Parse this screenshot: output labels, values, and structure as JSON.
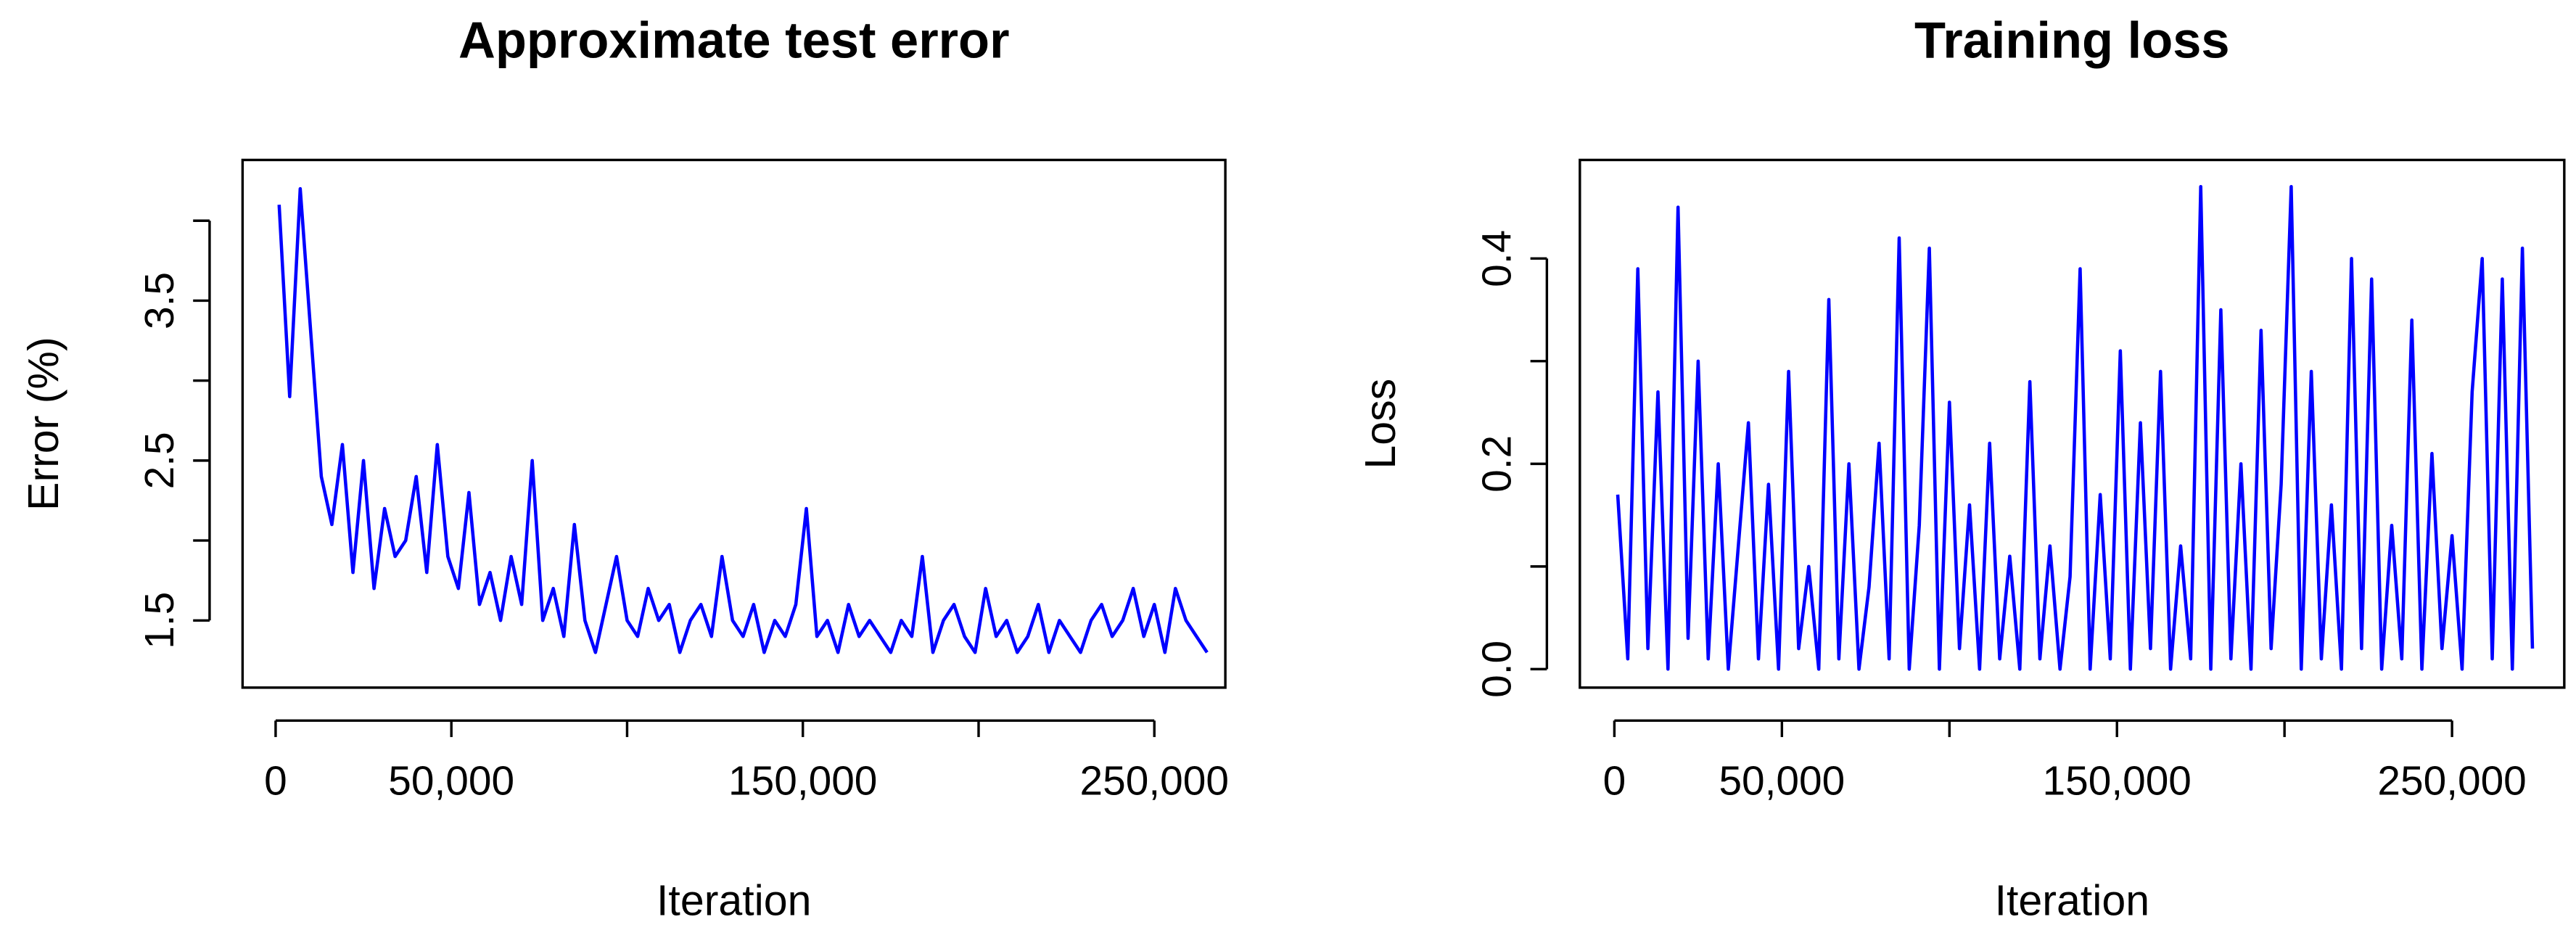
{
  "chart_data": [
    {
      "type": "line",
      "title": "Approximate test error",
      "xlabel": "Iteration",
      "ylabel": "Error (%)",
      "color": "#0000ff",
      "xlim": [
        -9400,
        270200
      ],
      "ylim": [
        1.08,
        4.38
      ],
      "xticks": [
        0,
        {
          "value": 50000,
          "label": "50,000"
        },
        {
          "value": 100000,
          "label": null
        },
        {
          "value": 150000,
          "label": "150,000"
        },
        {
          "value": 200000,
          "label": null
        },
        {
          "value": 250000,
          "label": "250,000"
        }
      ],
      "yticks": [
        1.5,
        {
          "value": 2.0,
          "label": null
        },
        2.5,
        {
          "value": 3.0,
          "label": null
        },
        3.5,
        {
          "value": 4.0,
          "label": null
        }
      ],
      "x": [
        1000,
        4000,
        7000,
        10000,
        13000,
        16000,
        19000,
        22000,
        25000,
        28000,
        31000,
        34000,
        37000,
        40000,
        43000,
        46000,
        49000,
        52000,
        55000,
        58000,
        61000,
        64000,
        67000,
        70000,
        73000,
        76000,
        79000,
        82000,
        85000,
        88000,
        91000,
        94000,
        97000,
        100000,
        103000,
        106000,
        109000,
        112000,
        115000,
        118000,
        121000,
        124000,
        127000,
        130000,
        133000,
        136000,
        139000,
        142000,
        145000,
        148000,
        151000,
        154000,
        157000,
        160000,
        163000,
        166000,
        169000,
        172000,
        175000,
        178000,
        181000,
        184000,
        187000,
        190000,
        193000,
        196000,
        199000,
        202000,
        205000,
        208000,
        211000,
        214000,
        217000,
        220000,
        223000,
        226000,
        229000,
        232000,
        235000,
        238000,
        241000,
        244000,
        247000,
        250000,
        253000,
        256000,
        259000,
        262000,
        265000
      ],
      "values": [
        4.1,
        2.9,
        4.2,
        3.3,
        2.4,
        2.1,
        2.6,
        1.8,
        2.5,
        1.7,
        2.2,
        1.9,
        2.0,
        2.4,
        1.8,
        2.6,
        1.9,
        1.7,
        2.3,
        1.6,
        1.8,
        1.5,
        1.9,
        1.6,
        2.5,
        1.5,
        1.7,
        1.4,
        2.1,
        1.5,
        1.3,
        1.6,
        1.9,
        1.5,
        1.4,
        1.7,
        1.5,
        1.6,
        1.3,
        1.5,
        1.6,
        1.4,
        1.9,
        1.5,
        1.4,
        1.6,
        1.3,
        1.5,
        1.4,
        1.6,
        2.2,
        1.4,
        1.5,
        1.3,
        1.6,
        1.4,
        1.5,
        1.4,
        1.3,
        1.5,
        1.4,
        1.9,
        1.3,
        1.5,
        1.6,
        1.4,
        1.3,
        1.7,
        1.4,
        1.5,
        1.3,
        1.4,
        1.6,
        1.3,
        1.5,
        1.4,
        1.3,
        1.5,
        1.6,
        1.4,
        1.5,
        1.7,
        1.4,
        1.6,
        1.3,
        1.7,
        1.5,
        1.4,
        1.3
      ]
    },
    {
      "type": "line",
      "title": "Training loss",
      "xlabel": "Iteration",
      "ylabel": "Loss",
      "color": "#0000ff",
      "xlim": [
        -10300,
        283500
      ],
      "ylim": [
        -0.018,
        0.496
      ],
      "xticks": [
        0,
        {
          "value": 50000,
          "label": "50,000"
        },
        {
          "value": 100000,
          "label": null
        },
        {
          "value": 150000,
          "label": "150,000"
        },
        {
          "value": 200000,
          "label": null
        },
        {
          "value": 250000,
          "label": "250,000"
        }
      ],
      "yticks": [
        {
          "value": 0,
          "label": "0.0"
        },
        {
          "value": 0.1,
          "label": null
        },
        0.2,
        {
          "value": 0.3,
          "label": null
        },
        0.4
      ],
      "x": [
        1000,
        4000,
        7000,
        10000,
        13000,
        16000,
        19000,
        22000,
        25000,
        28000,
        31000,
        34000,
        37000,
        40000,
        43000,
        46000,
        49000,
        52000,
        55000,
        58000,
        61000,
        64000,
        67000,
        70000,
        73000,
        76000,
        79000,
        82000,
        85000,
        88000,
        91000,
        94000,
        97000,
        100000,
        103000,
        106000,
        109000,
        112000,
        115000,
        118000,
        121000,
        124000,
        127000,
        130000,
        133000,
        136000,
        139000,
        142000,
        145000,
        148000,
        151000,
        154000,
        157000,
        160000,
        163000,
        166000,
        169000,
        172000,
        175000,
        178000,
        181000,
        184000,
        187000,
        190000,
        193000,
        196000,
        199000,
        202000,
        205000,
        208000,
        211000,
        214000,
        217000,
        220000,
        223000,
        226000,
        229000,
        232000,
        235000,
        238000,
        241000,
        244000,
        247000,
        250000,
        253000,
        256000,
        259000,
        262000,
        265000,
        268000,
        271000,
        274000
      ],
      "values": [
        0.17,
        0.01,
        0.39,
        0.02,
        0.27,
        0.0,
        0.45,
        0.03,
        0.3,
        0.01,
        0.2,
        0.0,
        0.12,
        0.24,
        0.01,
        0.18,
        0.0,
        0.29,
        0.02,
        0.1,
        0.0,
        0.36,
        0.01,
        0.2,
        0.0,
        0.08,
        0.22,
        0.01,
        0.42,
        0.0,
        0.14,
        0.41,
        0.0,
        0.26,
        0.02,
        0.16,
        0.0,
        0.22,
        0.01,
        0.11,
        0.0,
        0.28,
        0.01,
        0.12,
        0.0,
        0.09,
        0.39,
        0.0,
        0.17,
        0.01,
        0.31,
        0.0,
        0.24,
        0.02,
        0.29,
        0.0,
        0.12,
        0.01,
        0.47,
        0.0,
        0.35,
        0.01,
        0.2,
        0.0,
        0.33,
        0.02,
        0.18,
        0.47,
        0.0,
        0.29,
        0.01,
        0.16,
        0.0,
        0.4,
        0.02,
        0.38,
        0.0,
        0.14,
        0.01,
        0.34,
        0.0,
        0.21,
        0.02,
        0.13,
        0.0,
        0.27,
        0.4,
        0.01,
        0.38,
        0.0,
        0.41,
        0.02
      ]
    }
  ]
}
